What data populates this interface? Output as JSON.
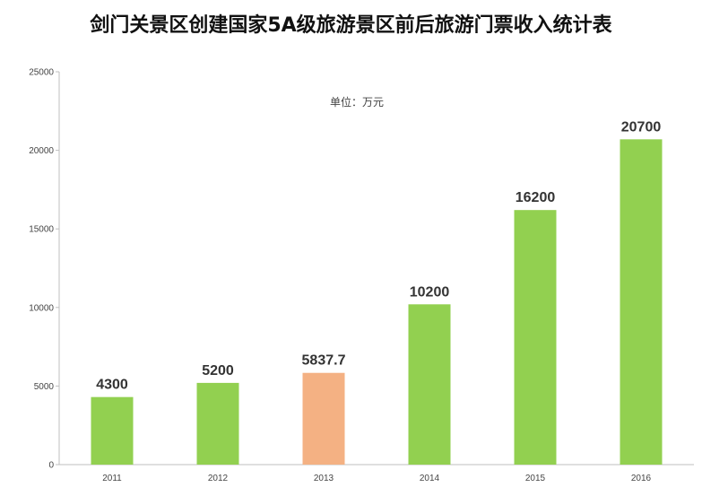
{
  "chart_data": {
    "type": "bar",
    "title": "剑门关景区创建国家5A级旅游景区前后旅游门票收入统计表",
    "unit_note": "单位：万元",
    "categories": [
      "2011",
      "2012",
      "2013",
      "2014",
      "2015",
      "2016"
    ],
    "values": [
      4300,
      5200,
      5837.7,
      10200,
      16200,
      20700
    ],
    "data_labels": [
      "4300",
      "5200",
      "5837.7",
      "10200",
      "16200",
      "20700"
    ],
    "y_ticks": [
      0,
      5000,
      10000,
      15000,
      20000,
      25000
    ],
    "ylim": [
      0,
      25000
    ],
    "xlabel": "",
    "ylabel": "",
    "grid": false,
    "legend": "none",
    "colors": {
      "default_bar": "#92d050",
      "highlight_bar": "#f4b183",
      "highlight_category": "2013",
      "axis": "#bfbfbf"
    }
  }
}
